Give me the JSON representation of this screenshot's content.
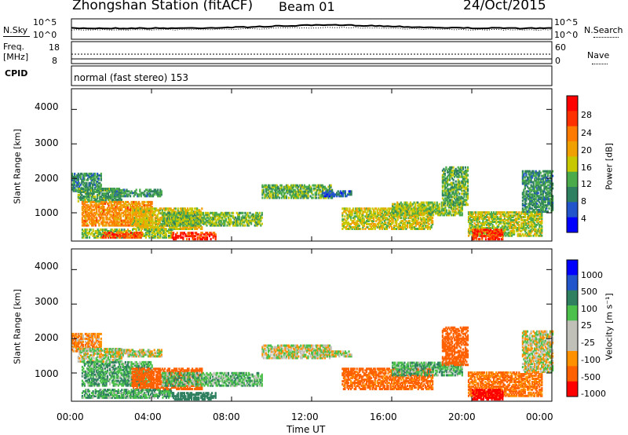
{
  "header": {
    "station": "Zhongshan Station (fitACF)",
    "beam": "Beam 01",
    "date": "24/Oct/2015"
  },
  "noise_panel": {
    "left_label": "N.Sky",
    "right_label": "N.Search",
    "left_ticks": [
      "10^5",
      "10^0"
    ],
    "right_ticks": [
      "10^5",
      "10^0"
    ]
  },
  "freq_panel": {
    "left_label_1": "Freq.",
    "left_label_2": "[MHz]",
    "right_label": "Nave",
    "left_ticks": [
      "18",
      "8"
    ],
    "right_ticks": [
      "60",
      "0"
    ]
  },
  "cpid": {
    "label": "CPID",
    "text": "normal (fast stereo) 153"
  },
  "colors": {
    "power": [
      "#0000ff",
      "#2255cc",
      "#2f8060",
      "#4bab4b",
      "#c8c800",
      "#f0a000",
      "#ff7a00",
      "#ff3000",
      "#ff0000"
    ],
    "velocity": [
      "#0000ff",
      "#2255cc",
      "#2f8060",
      "#4bc04b",
      "#c0c0b8",
      "#c0c0b8",
      "#ff9000",
      "#ff6000",
      "#ff0000"
    ]
  },
  "chart_data": [
    {
      "type": "heatmap",
      "name": "power",
      "ylabel": "Slant Range [km]",
      "ylim": [
        180,
        4600
      ],
      "y_ticks": [
        "1000",
        "2000",
        "3000",
        "4000"
      ],
      "x_ticks": [
        "00:00",
        "04:00",
        "08:00",
        "12:00",
        "16:00",
        "20:00",
        "00:00"
      ],
      "xlim_hours": [
        0,
        24
      ],
      "colorbar_label": "Power [dB]",
      "colorbar_ticks": [
        "4",
        "8",
        "12",
        "16",
        "20",
        "24",
        "28"
      ],
      "regions": [
        {
          "t": [
            0.0,
            1.5
          ],
          "r": [
            1600,
            2100
          ],
          "v": 9
        },
        {
          "t": [
            0.3,
            2.5
          ],
          "r": [
            1300,
            1700
          ],
          "v": 11
        },
        {
          "t": [
            2.0,
            4.5
          ],
          "r": [
            1450,
            1650
          ],
          "v": 10
        },
        {
          "t": [
            0.5,
            4.0
          ],
          "r": [
            600,
            1300
          ],
          "v": 21
        },
        {
          "t": [
            3.0,
            6.5
          ],
          "r": [
            500,
            1100
          ],
          "v": 17
        },
        {
          "t": [
            4.5,
            9.5
          ],
          "r": [
            600,
            1000
          ],
          "v": 13
        },
        {
          "t": [
            0.5,
            5.0
          ],
          "r": [
            250,
            500
          ],
          "v": 14
        },
        {
          "t": [
            5.0,
            7.2
          ],
          "r": [
            200,
            420
          ],
          "v": 27
        },
        {
          "t": [
            1.5,
            3.5
          ],
          "r": [
            250,
            400
          ],
          "v": 25
        },
        {
          "t": [
            9.5,
            13.0
          ],
          "r": [
            1400,
            1800
          ],
          "v": 12
        },
        {
          "t": [
            12.5,
            14.0
          ],
          "r": [
            1450,
            1600
          ],
          "v": 7
        },
        {
          "t": [
            13.5,
            18.0
          ],
          "r": [
            500,
            1100
          ],
          "v": 16
        },
        {
          "t": [
            16.0,
            19.5
          ],
          "r": [
            900,
            1300
          ],
          "v": 14
        },
        {
          "t": [
            18.5,
            19.8
          ],
          "r": [
            1200,
            2300
          ],
          "v": 12
        },
        {
          "t": [
            19.8,
            23.5
          ],
          "r": [
            300,
            1000
          ],
          "v": 15
        },
        {
          "t": [
            20.0,
            21.5
          ],
          "r": [
            200,
            500
          ],
          "v": 27
        },
        {
          "t": [
            22.5,
            24.0
          ],
          "r": [
            1000,
            2200
          ],
          "v": 10
        }
      ]
    },
    {
      "type": "heatmap",
      "name": "velocity",
      "ylabel": "Slant Range [km]",
      "ylim": [
        180,
        4600
      ],
      "y_ticks": [
        "1000",
        "2000",
        "3000",
        "4000"
      ],
      "x_ticks": [
        "00:00",
        "04:00",
        "08:00",
        "12:00",
        "16:00",
        "20:00",
        "00:00"
      ],
      "xlabel": "Time UT",
      "xlim_hours": [
        0,
        24
      ],
      "colorbar_label": "Velocity [m s⁻¹]",
      "colorbar_ticks": [
        "1000",
        "500",
        "100",
        "25",
        "-25",
        "-100",
        "-500",
        "-1000"
      ],
      "regions": [
        {
          "t": [
            0.0,
            1.5
          ],
          "r": [
            1600,
            2100
          ],
          "v": -80
        },
        {
          "t": [
            0.3,
            2.5
          ],
          "r": [
            1300,
            1700
          ],
          "v": 10
        },
        {
          "t": [
            2.0,
            4.5
          ],
          "r": [
            1450,
            1650
          ],
          "v": 0
        },
        {
          "t": [
            0.5,
            4.0
          ],
          "r": [
            600,
            1300
          ],
          "v": 80
        },
        {
          "t": [
            3.0,
            6.5
          ],
          "r": [
            500,
            1100
          ],
          "v": -200
        },
        {
          "t": [
            4.5,
            9.5
          ],
          "r": [
            600,
            1000
          ],
          "v": 60
        },
        {
          "t": [
            0.5,
            5.0
          ],
          "r": [
            250,
            500
          ],
          "v": 90
        },
        {
          "t": [
            5.0,
            7.2
          ],
          "r": [
            200,
            420
          ],
          "v": 200
        },
        {
          "t": [
            1.5,
            3.5
          ],
          "r": [
            250,
            400
          ],
          "v": 70
        },
        {
          "t": [
            9.5,
            13.0
          ],
          "r": [
            1400,
            1800
          ],
          "v": 0
        },
        {
          "t": [
            12.5,
            14.0
          ],
          "r": [
            1450,
            1600
          ],
          "v": 0
        },
        {
          "t": [
            13.5,
            18.0
          ],
          "r": [
            500,
            1100
          ],
          "v": -150
        },
        {
          "t": [
            16.0,
            19.5
          ],
          "r": [
            900,
            1300
          ],
          "v": 80
        },
        {
          "t": [
            18.5,
            19.8
          ],
          "r": [
            1200,
            2300
          ],
          "v": -300
        },
        {
          "t": [
            19.8,
            23.5
          ],
          "r": [
            300,
            1000
          ],
          "v": -120
        },
        {
          "t": [
            20.0,
            21.5
          ],
          "r": [
            200,
            500
          ],
          "v": -600
        },
        {
          "t": [
            22.5,
            24.0
          ],
          "r": [
            1000,
            2200
          ],
          "v": 0
        }
      ]
    }
  ]
}
